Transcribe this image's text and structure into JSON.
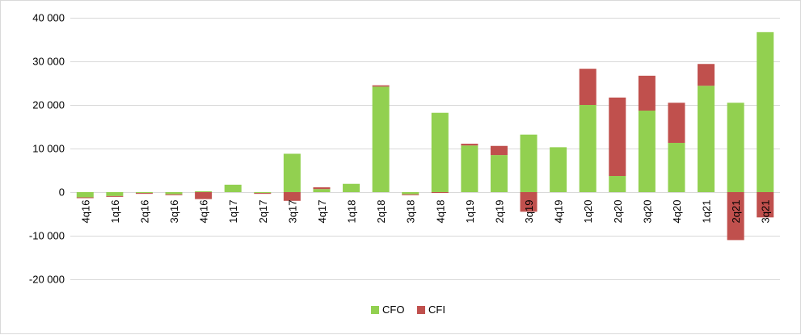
{
  "chart_data": {
    "type": "bar",
    "stacked": true,
    "categories": [
      "4q16",
      "1q16",
      "2q16",
      "3q16",
      "4q16",
      "1q17",
      "2q17",
      "3q17",
      "4q17",
      "1q18",
      "2q18",
      "3q18",
      "4q18",
      "1q19",
      "2q19",
      "3q19",
      "4q19",
      "1q20",
      "2q20",
      "3q20",
      "4q20",
      "1q21",
      "2q21",
      "3q21"
    ],
    "series": [
      {
        "name": "CFO",
        "color": "#92d050",
        "values": [
          -1200,
          -900,
          -200,
          -500,
          200,
          1700,
          -200,
          8800,
          700,
          1900,
          24200,
          -500,
          18200,
          10700,
          8500,
          13200,
          10300,
          20000,
          3700,
          18700,
          11300,
          24400,
          20500,
          36700
        ]
      },
      {
        "name": "CFI",
        "color": "#c0504d",
        "values": [
          -100,
          -100,
          -200,
          -200,
          -1600,
          0,
          -200,
          -2000,
          400,
          0,
          300,
          -200,
          -200,
          400,
          2100,
          -4500,
          0,
          8300,
          18000,
          8000,
          9200,
          5000,
          -11000,
          -5800
        ]
      }
    ],
    "ylim": [
      -20000,
      40000
    ],
    "yticks": [
      -20000,
      -10000,
      0,
      10000,
      20000,
      30000,
      40000
    ],
    "ytick_labels": [
      "-20 000",
      "-10 000",
      "0",
      "10 000",
      "20 000",
      "30 000",
      "40 000"
    ],
    "grid": true,
    "legend_position": "bottom",
    "title": "",
    "xlabel": "",
    "ylabel": ""
  }
}
